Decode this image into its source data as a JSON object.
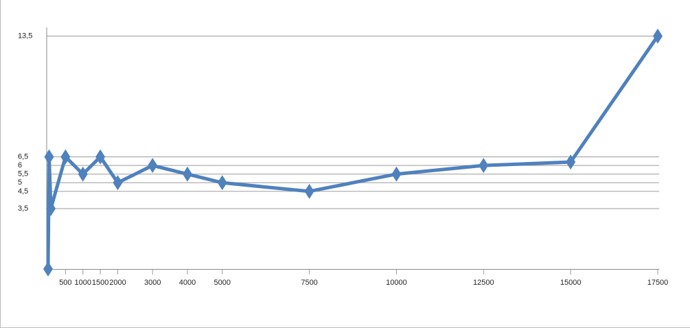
{
  "chart_data": {
    "type": "line",
    "x": [
      0,
      30,
      80,
      500,
      1000,
      1500,
      2000,
      3000,
      4000,
      5000,
      7500,
      10000,
      12500,
      15000,
      17500
    ],
    "series": [
      {
        "color": "#4f81bd",
        "values": [
          0,
          6.5,
          3.5,
          6.5,
          5.5,
          6.5,
          5,
          6,
          5.5,
          5,
          4.5,
          5.5,
          6,
          6.2,
          13.5
        ]
      }
    ],
    "xlim": [
      0,
      17500
    ],
    "xticks": [
      500,
      1000,
      1500,
      2000,
      3000,
      4000,
      5000,
      7500,
      10000,
      12500,
      15000,
      17500
    ],
    "ylim": [
      0,
      14
    ],
    "yticks": [
      {
        "value": 3.5,
        "label": "3,5"
      },
      {
        "value": 4.5,
        "label": "4,5"
      },
      5,
      {
        "value": 5.5,
        "label": "5,5"
      },
      6,
      {
        "value": 6.5,
        "label": "6,5"
      },
      {
        "value": 13.5,
        "label": "13,5"
      }
    ],
    "grid": true
  }
}
